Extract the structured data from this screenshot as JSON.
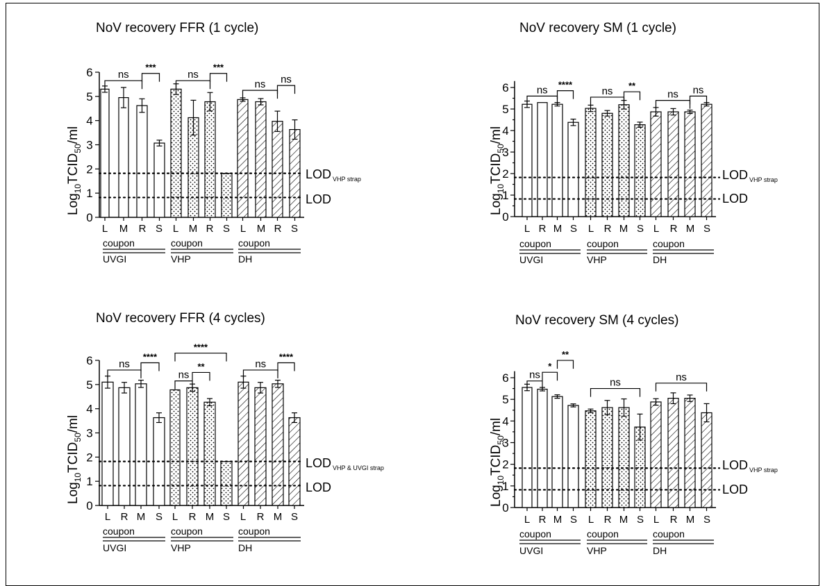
{
  "figure": {
    "ylabel_main": "Log",
    "ylabel_sub1": "10",
    "ylabel_mid": "TCID",
    "ylabel_sub2": "50",
    "ylabel_end": "/ml",
    "coupon_label": "coupon",
    "lod_label": "LOD",
    "colors": {
      "axis": "#000000",
      "bar_fill": "#ffffff"
    }
  },
  "chart_data": [
    {
      "type": "bar",
      "title": "NoV recovery FFR (1 cycle)",
      "ylim": [
        0,
        6
      ],
      "yticks": [
        "0",
        "1",
        "2",
        "3",
        "4",
        "5",
        "6"
      ],
      "groups": [
        {
          "name": "UVGI",
          "pattern": "plain",
          "categories": [
            "L",
            "M",
            "R",
            "S"
          ],
          "values": [
            5.3,
            4.95,
            4.62,
            3.07
          ],
          "errors": [
            0.13,
            0.42,
            0.28,
            0.12
          ]
        },
        {
          "name": "VHP",
          "pattern": "dots",
          "categories": [
            "L",
            "M",
            "R",
            "S"
          ],
          "values": [
            5.3,
            4.12,
            4.78,
            1.82
          ],
          "errors": [
            0.22,
            0.72,
            0.38,
            0
          ]
        },
        {
          "name": "DH",
          "pattern": "hatch",
          "categories": [
            "L",
            "M",
            "R",
            "S"
          ],
          "values": [
            4.87,
            4.78,
            3.97,
            3.63
          ],
          "errors": [
            0.07,
            0.13,
            0.42,
            0.4
          ]
        }
      ],
      "lod_lines": [
        {
          "y": 1.82,
          "sub": "VHP strap"
        },
        {
          "y": 0.82,
          "sub": ""
        }
      ],
      "significance": [
        {
          "group": 0,
          "from": 0,
          "to": 2,
          "level": 5.65,
          "label": "ns",
          "stars": false
        },
        {
          "group": 0,
          "from": 2,
          "to": 3,
          "level": 5.95,
          "label": "***",
          "stars": true
        },
        {
          "group": 1,
          "from": 0,
          "to": 2,
          "level": 5.65,
          "label": "ns",
          "stars": false
        },
        {
          "group": 1,
          "from": 2,
          "to": 3,
          "level": 5.95,
          "label": "***",
          "stars": true
        },
        {
          "group": 2,
          "from": 0,
          "to": 2,
          "level": 5.25,
          "label": "ns",
          "stars": false
        },
        {
          "group": 2,
          "from": 2,
          "to": 3,
          "level": 5.45,
          "label": "ns",
          "stars": false
        }
      ]
    },
    {
      "type": "bar",
      "title": "NoV recovery SM (1 cycle)",
      "ylim": [
        0,
        6.3
      ],
      "yticks": [
        "0",
        "0.5",
        "1",
        "1.5",
        "2",
        "2.5",
        "3",
        "3.5",
        "4",
        "4.5",
        "5",
        "5.5",
        "6"
      ],
      "groups": [
        {
          "name": "UVGI",
          "pattern": "plain",
          "categories": [
            "L",
            "R",
            "M",
            "S"
          ],
          "values": [
            5.22,
            5.3,
            5.22,
            4.38
          ],
          "errors": [
            0.15,
            0,
            0.08,
            0.15
          ]
        },
        {
          "name": "VHP",
          "pattern": "dots",
          "categories": [
            "L",
            "R",
            "M",
            "S"
          ],
          "values": [
            5.03,
            4.8,
            5.2,
            4.27
          ],
          "errors": [
            0.15,
            0.13,
            0.2,
            0.12
          ]
        },
        {
          "name": "DH",
          "pattern": "hatch",
          "categories": [
            "L",
            "R",
            "M",
            "S"
          ],
          "values": [
            4.87,
            4.87,
            4.87,
            5.22
          ],
          "errors": [
            0.2,
            0.15,
            0.08,
            0.08
          ]
        }
      ],
      "lod_lines": [
        {
          "y": 1.82,
          "sub": "VHP strap"
        },
        {
          "y": 0.82,
          "sub": ""
        }
      ],
      "significance": [
        {
          "group": 0,
          "from": 0,
          "to": 2,
          "level": 5.6,
          "label": "ns",
          "stars": false
        },
        {
          "group": 0,
          "from": 2,
          "to": 3,
          "level": 5.85,
          "label": "****",
          "stars": true
        },
        {
          "group": 1,
          "from": 0,
          "to": 2,
          "level": 5.55,
          "label": "ns",
          "stars": false
        },
        {
          "group": 1,
          "from": 2,
          "to": 3,
          "level": 5.8,
          "label": "**",
          "stars": true
        },
        {
          "group": 2,
          "from": 0,
          "to": 2,
          "level": 5.4,
          "label": "ns",
          "stars": false
        },
        {
          "group": 2,
          "from": 2,
          "to": 3,
          "level": 5.6,
          "label": "ns",
          "stars": false
        }
      ]
    },
    {
      "type": "bar",
      "title": "NoV recovery FFR (4 cycles)",
      "ylim": [
        0,
        6
      ],
      "yticks": [
        "0",
        "1",
        "2",
        "3",
        "4",
        "5",
        "6"
      ],
      "groups": [
        {
          "name": "UVGI",
          "pattern": "plain",
          "categories": [
            "L",
            "R",
            "M",
            "S"
          ],
          "values": [
            5.1,
            4.87,
            5.03,
            3.63
          ],
          "errors": [
            0.25,
            0.22,
            0.15,
            0.2
          ]
        },
        {
          "name": "VHP",
          "pattern": "dots",
          "categories": [
            "L",
            "R",
            "M",
            "S"
          ],
          "values": [
            4.78,
            4.87,
            4.27,
            1.82
          ],
          "errors": [
            0,
            0.15,
            0.15,
            0
          ]
        },
        {
          "name": "DH",
          "pattern": "hatch",
          "categories": [
            "L",
            "R",
            "M",
            "S"
          ],
          "values": [
            5.1,
            4.87,
            5.03,
            3.63
          ],
          "errors": [
            0.25,
            0.22,
            0.15,
            0.2
          ]
        }
      ],
      "lod_lines": [
        {
          "y": 1.82,
          "sub": "VHP & UVGI strap"
        },
        {
          "y": 0.82,
          "sub": ""
        }
      ],
      "significance": [
        {
          "group": 0,
          "from": 0,
          "to": 2,
          "level": 5.6,
          "label": "ns",
          "stars": false
        },
        {
          "group": 0,
          "from": 2,
          "to": 3,
          "level": 5.9,
          "label": "****",
          "stars": true
        },
        {
          "group": 1,
          "from": 0,
          "to": 1,
          "level": 5.15,
          "label": "ns",
          "stars": false
        },
        {
          "group": 1,
          "from": 1,
          "to": 2,
          "level": 5.5,
          "label": "**",
          "stars": true
        },
        {
          "group": 1,
          "from": 0,
          "to": 3,
          "level": 6.3,
          "label": "****",
          "stars": true
        },
        {
          "group": 2,
          "from": 0,
          "to": 2,
          "level": 5.6,
          "label": "ns",
          "stars": false
        },
        {
          "group": 2,
          "from": 2,
          "to": 3,
          "level": 5.9,
          "label": "****",
          "stars": true
        }
      ]
    },
    {
      "type": "bar",
      "title": "NoV recovery SM (4 cycles)",
      "ylim": [
        0,
        6.3
      ],
      "yticks": [
        "0",
        "0.5",
        "1",
        "1.5",
        "2",
        "2.5",
        "3",
        "3.5",
        "4",
        "4.5",
        "5",
        "5.5",
        "6"
      ],
      "groups": [
        {
          "name": "UVGI",
          "pattern": "plain",
          "categories": [
            "L",
            "R",
            "M",
            "S"
          ],
          "values": [
            5.55,
            5.47,
            5.13,
            4.72
          ],
          "errors": [
            0.15,
            0.08,
            0.08,
            0.07
          ]
        },
        {
          "name": "VHP",
          "pattern": "dots",
          "categories": [
            "L",
            "R",
            "M",
            "S"
          ],
          "values": [
            4.47,
            4.62,
            4.62,
            3.72
          ],
          "errors": [
            0.08,
            0.33,
            0.4,
            0.6
          ]
        },
        {
          "name": "DH",
          "pattern": "hatch",
          "categories": [
            "L",
            "R",
            "M",
            "S"
          ],
          "values": [
            4.88,
            5.05,
            5.05,
            4.38
          ],
          "errors": [
            0.15,
            0.25,
            0.15,
            0.42
          ]
        }
      ],
      "lod_lines": [
        {
          "y": 1.82,
          "sub": "VHP strap"
        },
        {
          "y": 0.82,
          "sub": ""
        }
      ],
      "significance": [
        {
          "group": 0,
          "from": 0,
          "to": 1,
          "level": 5.85,
          "label": "ns",
          "stars": false
        },
        {
          "group": 0,
          "from": 1,
          "to": 2,
          "level": 6.25,
          "label": "*",
          "stars": true
        },
        {
          "group": 0,
          "from": 2,
          "to": 3,
          "level": 6.8,
          "label": "**",
          "stars": true
        },
        {
          "group": 1,
          "from": 0,
          "to": 3,
          "level": 5.5,
          "label": "ns",
          "stars": false
        },
        {
          "group": 2,
          "from": 0,
          "to": 3,
          "level": 5.75,
          "label": "ns",
          "stars": false
        }
      ]
    }
  ]
}
